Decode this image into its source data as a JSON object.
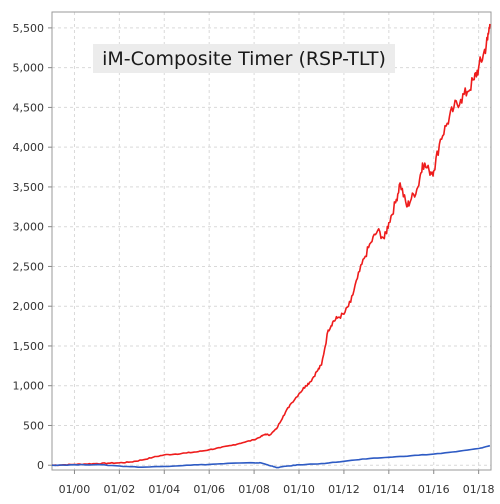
{
  "chart_data": {
    "type": "line",
    "title": "iM-Composite Timer (RSP-TLT)",
    "xlabel": "",
    "ylabel": "",
    "x_ticks": [
      {
        "label": "01/00",
        "year": 2000
      },
      {
        "label": "01/02",
        "year": 2002
      },
      {
        "label": "01/04",
        "year": 2004
      },
      {
        "label": "01/06",
        "year": 2006
      },
      {
        "label": "01/08",
        "year": 2008
      },
      {
        "label": "01/10",
        "year": 2010
      },
      {
        "label": "01/12",
        "year": 2012
      },
      {
        "label": "01/14",
        "year": 2014
      },
      {
        "label": "01/16",
        "year": 2016
      },
      {
        "label": "01/18",
        "year": 2018
      }
    ],
    "y_ticks": [
      {
        "label": "0",
        "value": 0
      },
      {
        "label": "500",
        "value": 500
      },
      {
        "label": "1,000",
        "value": 1000
      },
      {
        "label": "1,500",
        "value": 1500
      },
      {
        "label": "2,000",
        "value": 2000
      },
      {
        "label": "2,500",
        "value": 2500
      },
      {
        "label": "3,000",
        "value": 3000
      },
      {
        "label": "3,500",
        "value": 3500
      },
      {
        "label": "4,000",
        "value": 4000
      },
      {
        "label": "4,500",
        "value": 4500
      },
      {
        "label": "5,000",
        "value": 5000
      },
      {
        "label": "5,500",
        "value": 5500
      }
    ],
    "xlim": [
      1999.0,
      2018.55
    ],
    "ylim": [
      -60,
      5700
    ],
    "grid": true,
    "series": [
      {
        "color": "#ee1c1c",
        "x": [
          1999.0,
          1999.5,
          2000.0,
          2000.5,
          2001.0,
          2001.5,
          2002.0,
          2002.5,
          2003.0,
          2003.5,
          2004.0,
          2004.5,
          2005.0,
          2005.5,
          2006.0,
          2006.5,
          2007.0,
          2007.5,
          2008.0,
          2008.3,
          2008.5,
          2008.7,
          2009.0,
          2009.3,
          2009.6,
          2010.0,
          2010.3,
          2010.5,
          2010.8,
          2011.0,
          2011.3,
          2011.5,
          2011.7,
          2012.0,
          2012.3,
          2012.6,
          2012.9,
          2013.2,
          2013.5,
          2013.8,
          2014.0,
          2014.3,
          2014.5,
          2014.8,
          2015.0,
          2015.3,
          2015.5,
          2015.8,
          2016.0,
          2016.3,
          2016.6,
          2016.9,
          2017.2,
          2017.5,
          2017.8,
          2018.0,
          2018.2,
          2018.4,
          2018.5
        ],
        "values": [
          0,
          5,
          10,
          15,
          20,
          25,
          30,
          40,
          65,
          100,
          130,
          140,
          155,
          170,
          195,
          220,
          250,
          285,
          320,
          360,
          390,
          380,
          460,
          620,
          760,
          900,
          1000,
          1050,
          1180,
          1260,
          1700,
          1800,
          1850,
          1900,
          2050,
          2350,
          2600,
          2800,
          2950,
          2850,
          3050,
          3300,
          3550,
          3250,
          3350,
          3500,
          3800,
          3700,
          3700,
          4100,
          4300,
          4500,
          4600,
          4700,
          4850,
          5000,
          5150,
          5350,
          5550
        ]
      },
      {
        "color": "#2e5bc4",
        "x": [
          1999.0,
          2000.0,
          2001.0,
          2002.0,
          2003.0,
          2004.0,
          2005.0,
          2006.0,
          2007.0,
          2008.0,
          2008.3,
          2008.6,
          2009.0,
          2009.5,
          2010.0,
          2011.0,
          2012.0,
          2013.0,
          2014.0,
          2015.0,
          2016.0,
          2017.0,
          2018.0,
          2018.5
        ],
        "values": [
          0,
          5,
          8,
          -10,
          -25,
          -15,
          0,
          10,
          25,
          30,
          30,
          5,
          -30,
          -10,
          5,
          20,
          50,
          80,
          100,
          120,
          140,
          170,
          210,
          245
        ]
      }
    ]
  }
}
